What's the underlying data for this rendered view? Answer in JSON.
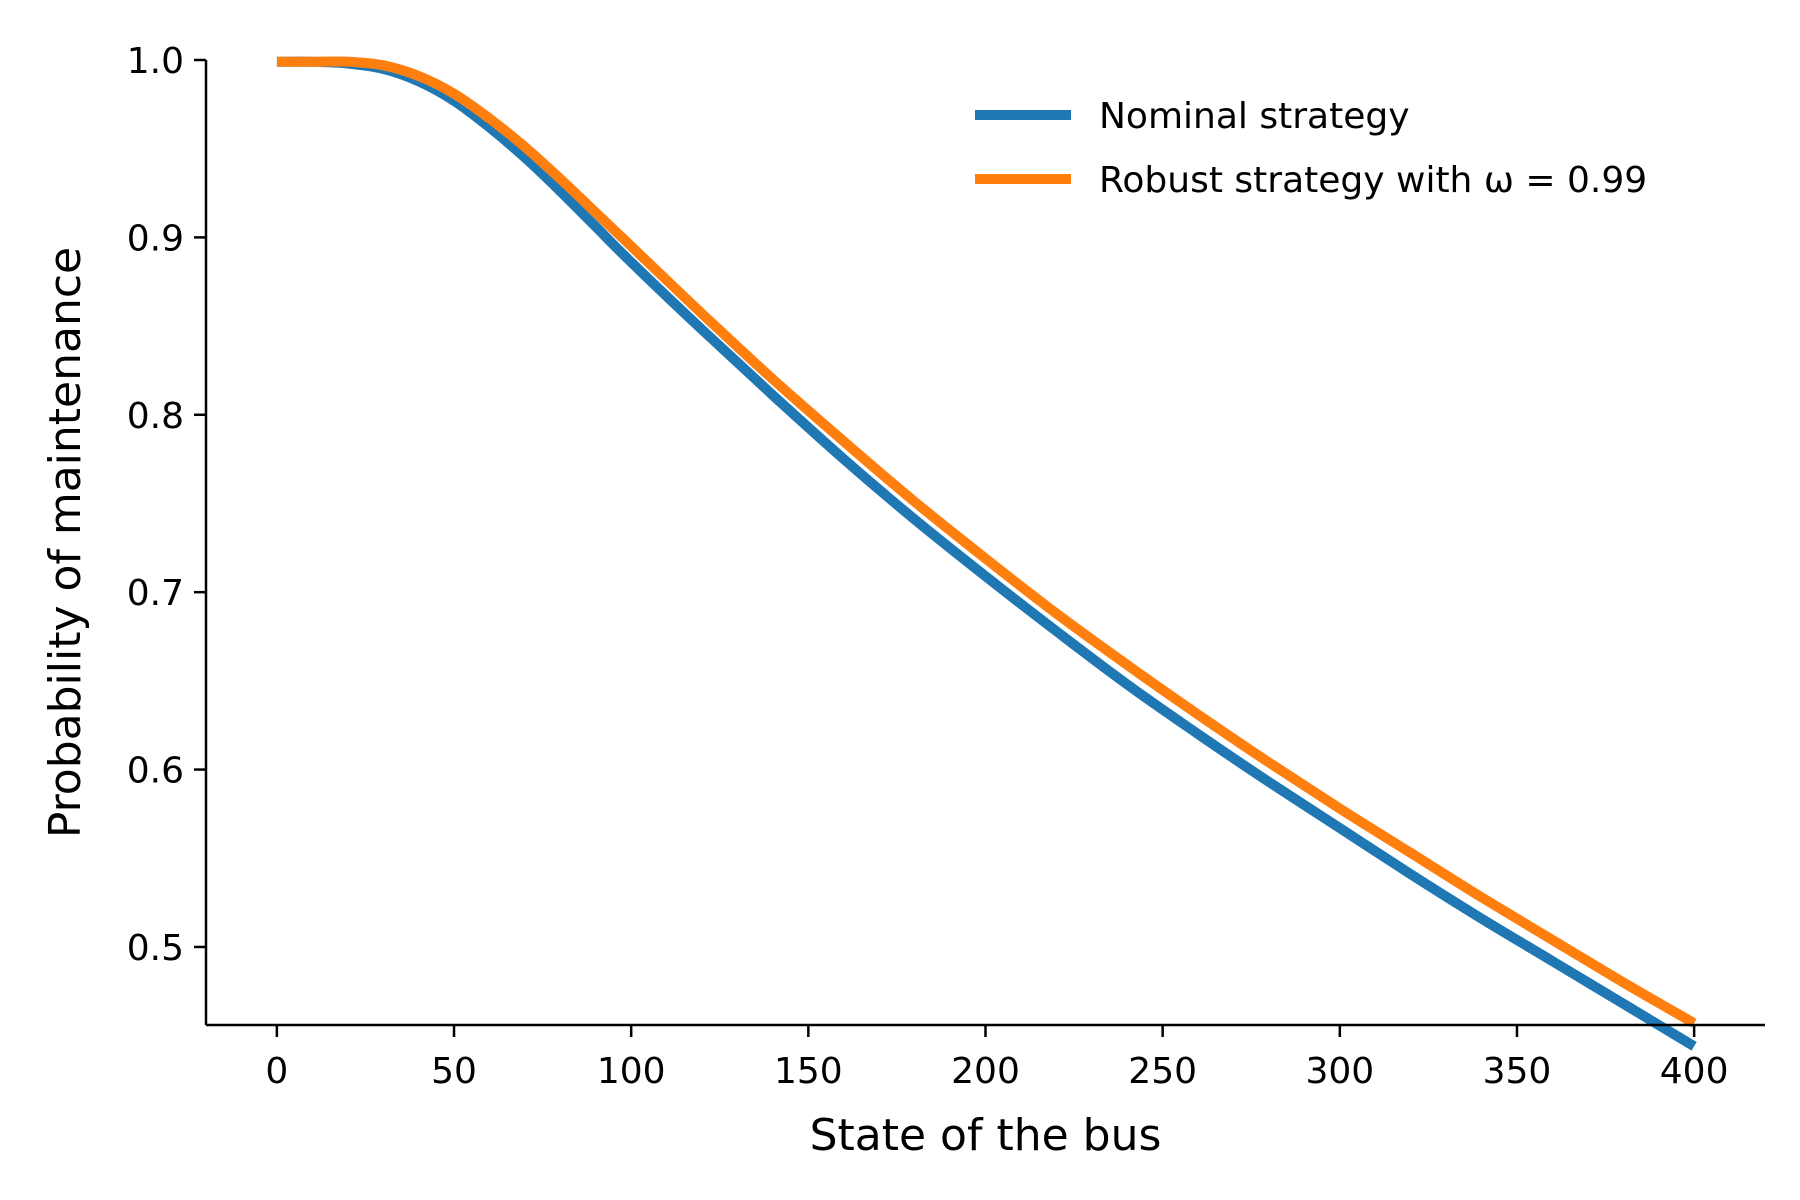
{
  "chart_data": {
    "type": "line",
    "xlabel": "State of the bus",
    "ylabel": "Probability of maintenance",
    "xlim": [
      -20,
      420
    ],
    "ylim": [
      0.456,
      1.0
    ],
    "xticks": [
      0,
      50,
      100,
      150,
      200,
      250,
      300,
      350,
      400
    ],
    "yticks": [
      0.5,
      0.6,
      0.7,
      0.8,
      0.9,
      1.0
    ],
    "xtick_labels": [
      "0",
      "50",
      "100",
      "150",
      "200",
      "250",
      "300",
      "350",
      "400"
    ],
    "ytick_labels": [
      "0.5",
      "0.6",
      "0.7",
      "0.8",
      "0.9",
      "1.0"
    ],
    "grid": false,
    "legend_position": "top-right",
    "series": [
      {
        "name": "Nominal strategy",
        "color": "#1f77b4",
        "x": [
          0,
          10,
          20,
          30,
          40,
          50,
          60,
          70,
          80,
          90,
          100,
          120,
          140,
          160,
          180,
          200,
          220,
          240,
          260,
          280,
          300,
          320,
          340,
          360,
          380,
          400
        ],
        "y": [
          0.999,
          0.999,
          0.998,
          0.995,
          0.988,
          0.977,
          0.962,
          0.945,
          0.926,
          0.906,
          0.886,
          0.848,
          0.811,
          0.775,
          0.741,
          0.709,
          0.678,
          0.648,
          0.62,
          0.593,
          0.567,
          0.541,
          0.516,
          0.492,
          0.468,
          0.444
        ]
      },
      {
        "name": "Robust strategy with ω = 0.99",
        "color": "#ff7f0e",
        "x": [
          0,
          10,
          20,
          30,
          40,
          50,
          60,
          70,
          80,
          90,
          100,
          120,
          140,
          160,
          180,
          200,
          220,
          240,
          260,
          280,
          300,
          320,
          340,
          360,
          380,
          400
        ],
        "y": [
          0.999,
          0.999,
          0.999,
          0.997,
          0.991,
          0.981,
          0.967,
          0.951,
          0.933,
          0.914,
          0.895,
          0.857,
          0.82,
          0.785,
          0.751,
          0.719,
          0.688,
          0.659,
          0.631,
          0.604,
          0.578,
          0.553,
          0.528,
          0.504,
          0.48,
          0.457
        ]
      }
    ]
  }
}
